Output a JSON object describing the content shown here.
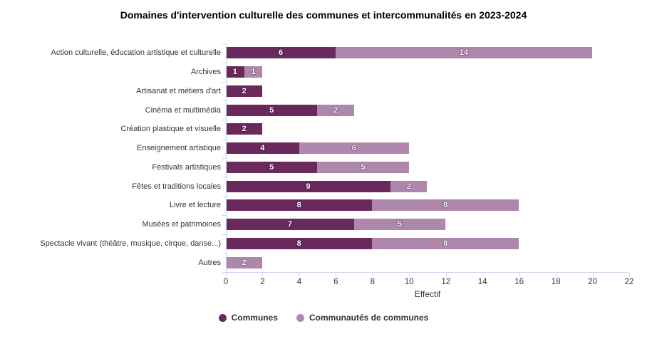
{
  "chart_data": {
    "type": "bar",
    "orientation": "horizontal",
    "stacked": true,
    "title": "Domaines d'intervention culturelle des communes et intercommunalités en 2023-2024",
    "categories": [
      "Action culturelle, éducation artistique et culturelle",
      "Archives",
      "Artisanat et métiers d'art",
      "Cinéma et multimédia",
      "Création plastique et visuelle",
      "Enseignement artistique",
      "Festivals artistiques",
      "Fêtes et traditions locales",
      "Livre et lecture",
      "Musées et patrimoines",
      "Spectacle vivant (théâtre, musique, cirque, danse...)",
      "Autres"
    ],
    "series": [
      {
        "name": "Communes",
        "color": "#69295d",
        "values": [
          6,
          1,
          2,
          5,
          2,
          4,
          5,
          9,
          8,
          7,
          8,
          0
        ]
      },
      {
        "name": "Communautés de communes",
        "color": "#b087ac",
        "values": [
          14,
          1,
          0,
          2,
          0,
          6,
          5,
          2,
          8,
          5,
          8,
          2
        ]
      }
    ],
    "xlabel": "Effectif",
    "xlim": [
      0,
      22
    ],
    "xticks": [
      0,
      2,
      4,
      6,
      8,
      10,
      12,
      14,
      16,
      18,
      20,
      22
    ],
    "grid": false,
    "legend_position": "bottom",
    "axis_color": "#ccd6eb",
    "tick_label_color": "#333333",
    "category_label_color": "#333333",
    "datalabel_color": "#ffffff",
    "background_color": "#ffffff"
  }
}
